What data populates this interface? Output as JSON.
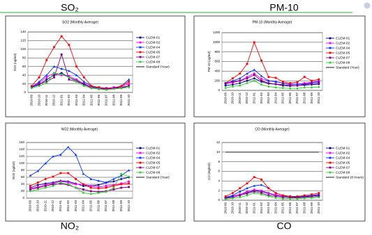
{
  "chart_data": [
    {
      "type": "line",
      "label": "SO₂",
      "title": "SO2 (Monthly Average)",
      "y_label": "SO2 (ug/m3)",
      "categories": [
        "2010-09",
        "2010-10",
        "2010-11",
        "2010-12",
        "2011-01",
        "2011-02",
        "2011-03",
        "2011-04",
        "2011-05",
        "2011-06",
        "2011-07",
        "2011-08",
        "2011-09",
        "2011-10"
      ],
      "ylim": [
        0,
        140
      ],
      "yticks": [
        0,
        20,
        40,
        60,
        80,
        100,
        120,
        140
      ],
      "grid": true,
      "series": [
        {
          "name": "CLEM-01",
          "color": "#000080",
          "values": [
            12,
            18,
            30,
            40,
            45,
            35,
            28,
            18,
            12,
            10,
            8,
            10,
            12,
            15
          ]
        },
        {
          "name": "CLEM-02",
          "color": "#ff00ff",
          "values": [
            14,
            22,
            35,
            45,
            40,
            38,
            30,
            20,
            14,
            10,
            10,
            12,
            14,
            20
          ]
        },
        {
          "name": "CLEM-04",
          "color": "#0033ff",
          "values": [
            12,
            25,
            40,
            60,
            55,
            50,
            40,
            25,
            15,
            10,
            8,
            10,
            15,
            30
          ]
        },
        {
          "name": "CLEM-05",
          "color": "#ff0000",
          "values": [
            15,
            35,
            75,
            105,
            130,
            110,
            60,
            35,
            15,
            12,
            10,
            10,
            15,
            25
          ]
        },
        {
          "name": "CLEM-07",
          "color": "#800080",
          "values": [
            12,
            20,
            25,
            35,
            88,
            30,
            25,
            20,
            10,
            8,
            8,
            10,
            10,
            15
          ]
        },
        {
          "name": "CLEM-08",
          "color": "#33cc33",
          "values": [
            10,
            15,
            22,
            45,
            42,
            35,
            25,
            15,
            10,
            8,
            6,
            8,
            10,
            12
          ]
        },
        {
          "name": "Standard (Year)",
          "color": "#000000",
          "values": [
            null,
            null,
            null,
            null,
            null,
            null,
            null,
            null,
            null,
            null,
            null,
            null,
            null,
            null
          ]
        }
      ]
    },
    {
      "type": "line",
      "label": "PM-10",
      "title": "PM-10 (Monthly Average)",
      "y_label": "PM-10 (ug/m3)",
      "categories": [
        "2010-09",
        "2010-10",
        "2010-11",
        "2010-12",
        "2011-01",
        "2011-02",
        "2011-03",
        "2011-04",
        "2011-05",
        "2011-06",
        "2011-07",
        "2011-08",
        "2011-09",
        "2011-10"
      ],
      "ylim": [
        0,
        1200
      ],
      "yticks": [
        0,
        200,
        400,
        600,
        800,
        1000,
        1200
      ],
      "grid": true,
      "series": [
        {
          "name": "CLEM-01",
          "color": "#000080",
          "values": [
            100,
            120,
            150,
            200,
            250,
            180,
            140,
            130,
            100,
            90,
            100,
            110,
            120,
            130
          ]
        },
        {
          "name": "CLEM-02",
          "color": "#ff00ff",
          "values": [
            140,
            160,
            200,
            280,
            350,
            240,
            200,
            180,
            150,
            130,
            130,
            150,
            170,
            190
          ]
        },
        {
          "name": "CLEM-04",
          "color": "#0033ff",
          "values": [
            130,
            200,
            250,
            350,
            430,
            300,
            200,
            180,
            150,
            120,
            130,
            130,
            160,
            180
          ]
        },
        {
          "name": "CLEM-05",
          "color": "#ff0000",
          "values": [
            150,
            250,
            350,
            550,
            1000,
            620,
            280,
            260,
            180,
            150,
            170,
            280,
            200,
            230
          ]
        },
        {
          "name": "CLEM-07",
          "color": "#800080",
          "values": [
            150,
            180,
            200,
            250,
            320,
            200,
            150,
            130,
            120,
            100,
            100,
            120,
            140,
            150
          ]
        },
        {
          "name": "CLEM-08",
          "color": "#33cc33",
          "values": [
            50,
            80,
            100,
            150,
            200,
            120,
            80,
            60,
            50,
            40,
            40,
            60,
            60,
            70
          ]
        },
        {
          "name": "Standard (Year)",
          "color": "#000000",
          "values": [
            null,
            null,
            null,
            null,
            null,
            null,
            null,
            null,
            null,
            null,
            null,
            null,
            null,
            null
          ]
        }
      ]
    },
    {
      "type": "line",
      "label": "NO₂",
      "title": "NO2 (Monthly Average)",
      "y_label": "NO2 (ug/m3)",
      "categories": [
        "2010-09",
        "2010-10",
        "2010-11",
        "2010-12",
        "2011-01",
        "2011-02",
        "2011-03",
        "2011-04",
        "2011-05",
        "2011-06",
        "2011-07",
        "2011-08",
        "2011-09",
        "2011-10"
      ],
      "ylim": [
        0,
        160
      ],
      "yticks": [
        0,
        20,
        40,
        60,
        80,
        100,
        120,
        140,
        160
      ],
      "grid": true,
      "series": [
        {
          "name": "CLEM-01",
          "color": "#000080",
          "values": [
            30,
            38,
            42,
            45,
            50,
            48,
            42,
            35,
            35,
            38,
            45,
            48,
            55,
            60
          ]
        },
        {
          "name": "CLEM-02",
          "color": "#ff00ff",
          "values": [
            28,
            32,
            38,
            42,
            48,
            45,
            40,
            40,
            35,
            32,
            35,
            38,
            42,
            48
          ]
        },
        {
          "name": "CLEM-04",
          "color": "#0033ff",
          "values": [
            65,
            78,
            100,
            120,
            125,
            147,
            125,
            70,
            55,
            50,
            45,
            55,
            65,
            80
          ]
        },
        {
          "name": "CLEM-05",
          "color": "#ff0000",
          "values": [
            35,
            45,
            55,
            62,
            72,
            72,
            55,
            40,
            30,
            28,
            30,
            35,
            40,
            42
          ]
        },
        {
          "name": "CLEM-07",
          "color": "#800080",
          "values": [
            25,
            30,
            35,
            40,
            42,
            38,
            30,
            25,
            20,
            18,
            20,
            25,
            30,
            32
          ]
        },
        {
          "name": "CLEM-08",
          "color": "#33cc33",
          "values": [
            20,
            25,
            30,
            35,
            45,
            40,
            30,
            15,
            12,
            15,
            18,
            30,
            70,
            62
          ]
        },
        {
          "name": "Standard (Year)",
          "color": "#000000",
          "values": [
            null,
            null,
            null,
            null,
            null,
            null,
            null,
            null,
            null,
            null,
            null,
            null,
            null,
            null
          ]
        }
      ]
    },
    {
      "type": "line",
      "label": "CO",
      "title": "CO (Monthly Average)",
      "y_label": "CO (mg/m3)",
      "categories": [
        "2010-09",
        "2010-10",
        "2010-11",
        "2010-12",
        "2011-01",
        "2011-02",
        "2011-03",
        "2011-04",
        "2011-05",
        "2011-06",
        "2011-07",
        "2011-08",
        "2011-09",
        "2011-10"
      ],
      "ylim": [
        0,
        12
      ],
      "yticks": [
        0,
        2,
        4,
        6,
        8,
        10,
        12
      ],
      "grid": true,
      "series": [
        {
          "name": "CLEM-01",
          "color": "#000080",
          "values": [
            0.5,
            0.8,
            1.2,
            1.6,
            2.0,
            1.8,
            1.4,
            1.0,
            0.8,
            0.7,
            0.6,
            0.7,
            0.9,
            1.0
          ]
        },
        {
          "name": "CLEM-02",
          "color": "#ff00ff",
          "values": [
            0.6,
            0.9,
            1.2,
            1.8,
            2.2,
            2.0,
            1.5,
            1.1,
            0.9,
            0.8,
            0.7,
            0.8,
            1.0,
            1.1
          ]
        },
        {
          "name": "CLEM-04",
          "color": "#0033ff",
          "values": [
            0.6,
            1.0,
            1.8,
            2.5,
            3.0,
            3.2,
            2.5,
            1.5,
            1.0,
            0.8,
            0.7,
            0.8,
            1.0,
            1.2
          ]
        },
        {
          "name": "CLEM-05",
          "color": "#ff0000",
          "values": [
            0.8,
            1.5,
            2.5,
            3.5,
            4.8,
            4.3,
            2.5,
            1.5,
            1.0,
            0.8,
            0.8,
            1.0,
            1.2,
            1.5
          ]
        },
        {
          "name": "CLEM-07",
          "color": "#800080",
          "values": [
            0.4,
            0.6,
            1.0,
            1.4,
            1.8,
            1.5,
            1.0,
            0.8,
            0.6,
            0.5,
            0.5,
            0.6,
            0.7,
            0.8
          ]
        },
        {
          "name": "CLEM-08",
          "color": "#33cc33",
          "values": [
            0.2,
            0.4,
            0.6,
            1.0,
            1.5,
            1.2,
            0.8,
            0.5,
            0.3,
            0.3,
            0.3,
            0.4,
            0.5,
            0.6
          ]
        },
        {
          "name": "Standard (8 hours)",
          "color": "#000000",
          "values": [
            10,
            10,
            10,
            10,
            10,
            10,
            10,
            10,
            10,
            10,
            10,
            10,
            10,
            10
          ]
        }
      ]
    }
  ]
}
